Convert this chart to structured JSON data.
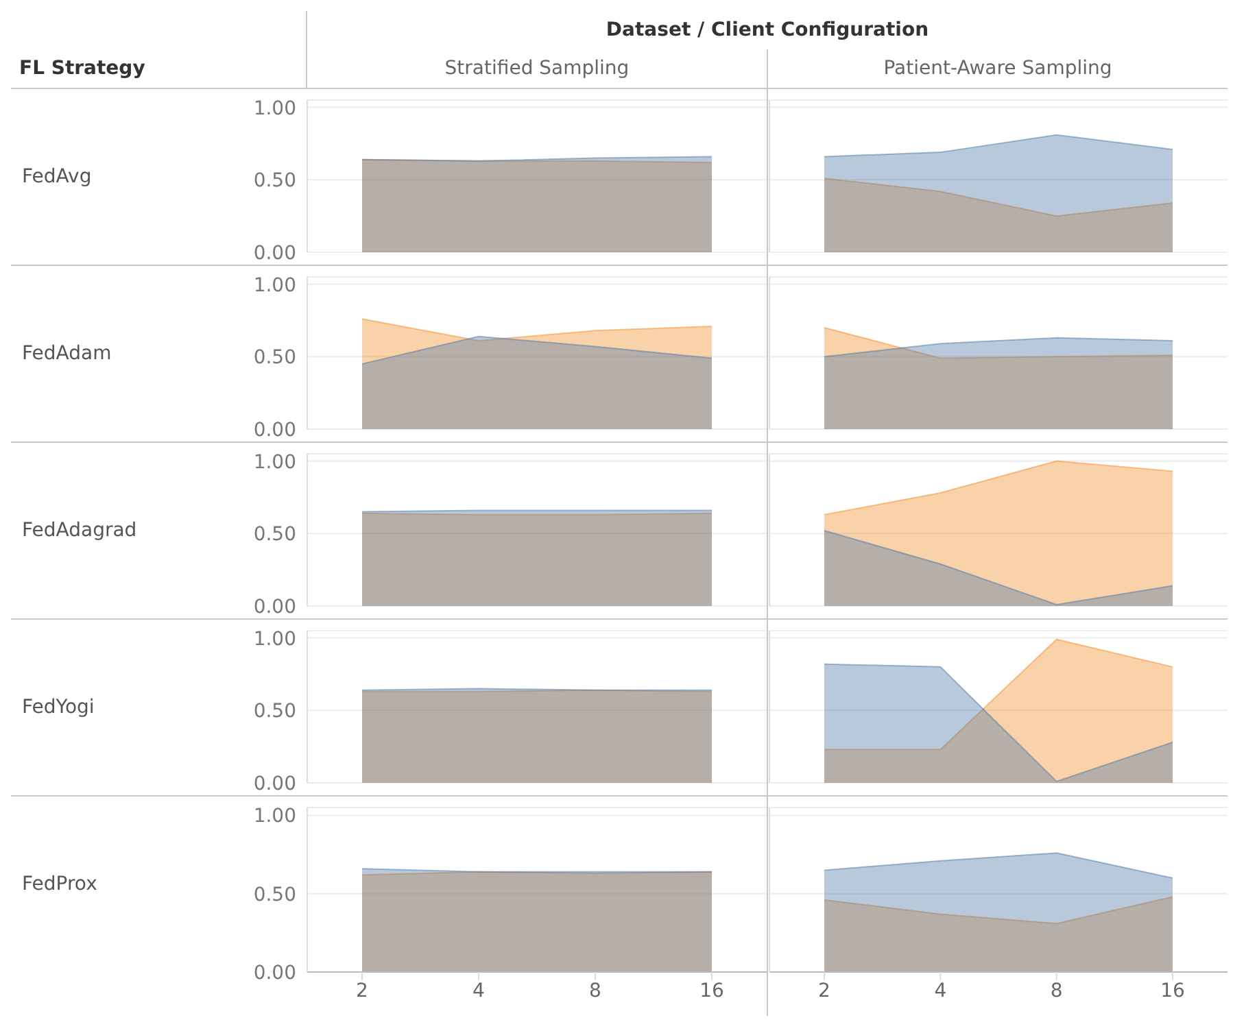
{
  "chart_data": [
    {
      "type": "area",
      "title": "Stratified Sampling",
      "ylabel": "FedAvg",
      "annotations": [
        "Dataset / Client Configuration",
        "FL Strategy"
      ],
      "categories": [
        "2",
        "4",
        "8",
        "16"
      ],
      "series": [
        {
          "color": "#f28e2b",
          "values": [
            0.64,
            0.63,
            0.63,
            0.62
          ]
        },
        {
          "color": "#4e79a7",
          "values": [
            0.64,
            0.63,
            0.65,
            0.66
          ]
        }
      ],
      "ylim": [
        0,
        1.05
      ],
      "yticks": [
        {
          "value": 0,
          "label": "0.00"
        },
        {
          "value": 0.5,
          "label": "0.50"
        },
        {
          "value": 1,
          "label": "1.00"
        }
      ],
      "grid": "y",
      "tick_labels": "y"
    },
    {
      "type": "area",
      "title": "Patient-Aware Sampling",
      "categories": [
        "2",
        "4",
        "8",
        "16"
      ],
      "series": [
        {
          "color": "#f28e2b",
          "values": [
            0.51,
            0.42,
            0.25,
            0.34
          ]
        },
        {
          "color": "#4e79a7",
          "values": [
            0.66,
            0.69,
            0.81,
            0.71
          ]
        }
      ],
      "ylim": [
        0,
        1.05
      ],
      "yticks": [
        0,
        0.5,
        1
      ],
      "grid": "y",
      "tick_labels": false
    },
    {
      "type": "area",
      "ylabel": "FedAdam",
      "categories": [
        "2",
        "4",
        "8",
        "16"
      ],
      "series": [
        {
          "color": "#f28e2b",
          "values": [
            0.76,
            0.61,
            0.68,
            0.71
          ]
        },
        {
          "color": "#4e79a7",
          "values": [
            0.45,
            0.64,
            0.57,
            0.49
          ]
        }
      ],
      "ylim": [
        0,
        1.05
      ],
      "yticks": [
        {
          "value": 0,
          "label": "0.00"
        },
        {
          "value": 0.5,
          "label": "0.50"
        },
        {
          "value": 1,
          "label": "1.00"
        }
      ],
      "grid": "y",
      "tick_labels": "y"
    },
    {
      "type": "area",
      "categories": [
        "2",
        "4",
        "8",
        "16"
      ],
      "series": [
        {
          "color": "#f28e2b",
          "values": [
            0.7,
            0.49,
            0.5,
            0.51
          ]
        },
        {
          "color": "#4e79a7",
          "values": [
            0.5,
            0.59,
            0.63,
            0.61
          ]
        }
      ],
      "ylim": [
        0,
        1.05
      ],
      "yticks": [
        0,
        0.5,
        1
      ],
      "grid": "y",
      "tick_labels": false
    },
    {
      "type": "area",
      "ylabel": "FedAdagrad",
      "categories": [
        "2",
        "4",
        "8",
        "16"
      ],
      "series": [
        {
          "color": "#f28e2b",
          "values": [
            0.64,
            0.63,
            0.63,
            0.64
          ]
        },
        {
          "color": "#4e79a7",
          "values": [
            0.65,
            0.66,
            0.66,
            0.66
          ]
        }
      ],
      "ylim": [
        0,
        1.05
      ],
      "yticks": [
        {
          "value": 0,
          "label": "0.00"
        },
        {
          "value": 0.5,
          "label": "0.50"
        },
        {
          "value": 1,
          "label": "1.00"
        }
      ],
      "grid": "y",
      "tick_labels": "y"
    },
    {
      "type": "area",
      "categories": [
        "2",
        "4",
        "8",
        "16"
      ],
      "series": [
        {
          "color": "#f28e2b",
          "values": [
            0.63,
            0.78,
            1.0,
            0.93
          ]
        },
        {
          "color": "#4e79a7",
          "values": [
            0.52,
            0.29,
            0.01,
            0.14
          ]
        }
      ],
      "ylim": [
        0,
        1.05
      ],
      "yticks": [
        0,
        0.5,
        1
      ],
      "grid": "y",
      "tick_labels": false
    },
    {
      "type": "area",
      "ylabel": "FedYogi",
      "categories": [
        "2",
        "4",
        "8",
        "16"
      ],
      "series": [
        {
          "color": "#f28e2b",
          "values": [
            0.63,
            0.63,
            0.64,
            0.63
          ]
        },
        {
          "color": "#4e79a7",
          "values": [
            0.64,
            0.65,
            0.64,
            0.64
          ]
        }
      ],
      "ylim": [
        0,
        1.05
      ],
      "yticks": [
        {
          "value": 0,
          "label": "0.00"
        },
        {
          "value": 0.5,
          "label": "0.50"
        },
        {
          "value": 1,
          "label": "1.00"
        }
      ],
      "grid": "y",
      "tick_labels": "y"
    },
    {
      "type": "area",
      "categories": [
        "2",
        "4",
        "8",
        "16"
      ],
      "series": [
        {
          "color": "#f28e2b",
          "values": [
            0.23,
            0.23,
            0.99,
            0.8
          ]
        },
        {
          "color": "#4e79a7",
          "values": [
            0.82,
            0.8,
            0.01,
            0.28
          ]
        }
      ],
      "ylim": [
        0,
        1.05
      ],
      "yticks": [
        0,
        0.5,
        1
      ],
      "grid": "y",
      "tick_labels": false
    },
    {
      "type": "area",
      "ylabel": "FedProx",
      "categories": [
        "2",
        "4",
        "8",
        "16"
      ],
      "series": [
        {
          "color": "#f28e2b",
          "values": [
            0.62,
            0.64,
            0.63,
            0.64
          ]
        },
        {
          "color": "#4e79a7",
          "values": [
            0.66,
            0.64,
            0.64,
            0.64
          ]
        }
      ],
      "ylim": [
        0,
        1.05
      ],
      "yticks": [
        {
          "value": 0,
          "label": "0.00"
        },
        {
          "value": 0.5,
          "label": "0.50"
        },
        {
          "value": 1,
          "label": "1.00"
        }
      ],
      "grid": "y"
    },
    {
      "type": "area",
      "categories": [
        "2",
        "4",
        "8",
        "16"
      ],
      "series": [
        {
          "color": "#f28e2b",
          "values": [
            0.46,
            0.37,
            0.31,
            0.48
          ]
        },
        {
          "color": "#4e79a7",
          "values": [
            0.65,
            0.71,
            0.76,
            0.6
          ]
        }
      ],
      "ylim": [
        0,
        1.05
      ],
      "yticks": [
        0,
        0.5,
        1
      ],
      "grid": "y",
      "tick_labels": "x"
    }
  ]
}
